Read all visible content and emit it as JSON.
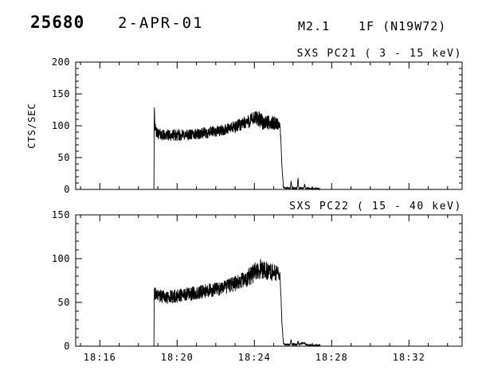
{
  "header": {
    "event_id": "25680",
    "date": "2-APR-01",
    "goes_class": "M2.1",
    "flare_info": "1F (N19W72)"
  },
  "chart_data": [
    {
      "type": "line",
      "title": "SXS PC21 (  3 - 15 keV)",
      "ylabel": "CTS/SEC",
      "ylim": [
        0,
        200
      ],
      "yticks": [
        0,
        50,
        100,
        150,
        200
      ],
      "y_minor_step": 10,
      "xlim_minutes_after_1800": [
        14.75,
        34.75
      ],
      "xticks": [
        {
          "t": 16,
          "label": "18:16"
        },
        {
          "t": 20,
          "label": "18:20"
        },
        {
          "t": 24,
          "label": "18:24"
        },
        {
          "t": 28,
          "label": "18:28"
        },
        {
          "t": 32,
          "label": "18:32"
        }
      ],
      "x_minor_step": 1,
      "show_x_labels": false,
      "grid": false,
      "line_color": "#000000",
      "series": {
        "name": "SXS PC21 count rate",
        "t_range": [
          18.8,
          27.4
        ],
        "envelope": [
          [
            18.8,
            0
          ],
          [
            18.82,
            138
          ],
          [
            18.86,
            95
          ],
          [
            18.95,
            88
          ],
          [
            19.3,
            85
          ],
          [
            20.0,
            85
          ],
          [
            20.8,
            86
          ],
          [
            21.6,
            89
          ],
          [
            22.4,
            93
          ],
          [
            23.0,
            98
          ],
          [
            23.5,
            104
          ],
          [
            23.9,
            110
          ],
          [
            24.15,
            112
          ],
          [
            24.45,
            106
          ],
          [
            24.8,
            104
          ],
          [
            25.1,
            104
          ],
          [
            25.33,
            101
          ],
          [
            25.42,
            40
          ],
          [
            25.5,
            4
          ],
          [
            25.6,
            2
          ],
          [
            25.86,
            2
          ],
          [
            25.9,
            13
          ],
          [
            25.94,
            2
          ],
          [
            26.22,
            2
          ],
          [
            26.26,
            19
          ],
          [
            26.3,
            2
          ],
          [
            26.56,
            2
          ],
          [
            26.6,
            8
          ],
          [
            26.64,
            2
          ],
          [
            27.0,
            1
          ],
          [
            27.4,
            1
          ]
        ],
        "noise_amplitude": [
          [
            18.8,
            9
          ],
          [
            22.5,
            9
          ],
          [
            23.5,
            11
          ],
          [
            24.3,
            13
          ],
          [
            25.2,
            10
          ],
          [
            25.45,
            2
          ],
          [
            25.6,
            1.2
          ],
          [
            27.4,
            1.2
          ]
        ]
      }
    },
    {
      "type": "line",
      "title": "SXS PC22 ( 15 - 40 keV)",
      "ylabel": "",
      "ylim": [
        0,
        150
      ],
      "yticks": [
        0,
        50,
        100,
        150
      ],
      "y_minor_step": 10,
      "xlim_minutes_after_1800": [
        14.75,
        34.75
      ],
      "xticks": [
        {
          "t": 16,
          "label": "18:16"
        },
        {
          "t": 20,
          "label": "18:20"
        },
        {
          "t": 24,
          "label": "18:24"
        },
        {
          "t": 28,
          "label": "18:28"
        },
        {
          "t": 32,
          "label": "18:32"
        }
      ],
      "x_minor_step": 1,
      "show_x_labels": true,
      "grid": false,
      "line_color": "#000000",
      "series": {
        "name": "SXS PC22 count rate",
        "t_range": [
          18.8,
          27.4
        ],
        "envelope": [
          [
            18.8,
            0
          ],
          [
            18.82,
            66
          ],
          [
            18.86,
            60
          ],
          [
            19.0,
            57
          ],
          [
            19.5,
            56
          ],
          [
            20.2,
            58
          ],
          [
            21.0,
            61
          ],
          [
            21.8,
            64
          ],
          [
            22.6,
            68
          ],
          [
            23.2,
            73
          ],
          [
            23.7,
            79
          ],
          [
            24.05,
            85
          ],
          [
            24.35,
            89
          ],
          [
            24.6,
            86
          ],
          [
            24.9,
            85
          ],
          [
            25.2,
            83
          ],
          [
            25.33,
            81
          ],
          [
            25.42,
            30
          ],
          [
            25.5,
            3
          ],
          [
            25.6,
            2
          ],
          [
            25.86,
            2
          ],
          [
            25.9,
            8
          ],
          [
            25.94,
            2
          ],
          [
            26.22,
            2
          ],
          [
            26.26,
            6
          ],
          [
            26.3,
            2
          ],
          [
            26.6,
            4
          ],
          [
            26.64,
            2
          ],
          [
            27.0,
            1
          ],
          [
            27.4,
            1
          ]
        ],
        "noise_amplitude": [
          [
            18.8,
            8
          ],
          [
            22.5,
            8
          ],
          [
            23.5,
            10
          ],
          [
            24.3,
            12
          ],
          [
            25.2,
            9
          ],
          [
            25.45,
            2
          ],
          [
            25.6,
            1
          ],
          [
            27.4,
            1
          ]
        ]
      }
    }
  ]
}
